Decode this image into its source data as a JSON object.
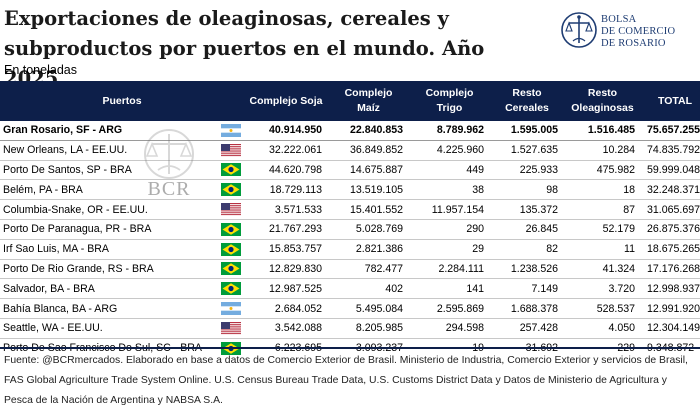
{
  "title": "Exportaciones de oleaginosas, cereales y subproductos por puertos en el mundo. Año 2025",
  "subtitle": "En toneladas",
  "logo": {
    "line1": "BOLSA",
    "line2": "DE COMERCIO",
    "line3": "DE ROSARIO"
  },
  "watermark": "BCR",
  "table": {
    "headers": {
      "port": "Puertos",
      "soja": "Complejo Soja",
      "maiz": "Complejo Maíz",
      "trigo": "Complejo Trigo",
      "resto_cereales": "Resto Cereales",
      "resto_oleaginosas": "Resto Oleaginosas",
      "total": "TOTAL"
    },
    "rows": [
      {
        "port": "Gran Rosario, SF - ARG",
        "flag": "arg",
        "soja": "40.914.950",
        "maiz": "22.840.853",
        "trigo": "8.789.962",
        "resto_cereales": "1.595.005",
        "resto_oleaginosas": "1.516.485",
        "total": "75.657.255"
      },
      {
        "port": "New Orleans,  LA - EE.UU.",
        "flag": "usa",
        "soja": "32.222.061",
        "maiz": "36.849.852",
        "trigo": "4.225.960",
        "resto_cereales": "1.527.635",
        "resto_oleaginosas": "10.284",
        "total": "74.835.792"
      },
      {
        "port": "Porto De Santos, SP - BRA",
        "flag": "bra",
        "soja": "44.620.798",
        "maiz": "14.675.887",
        "trigo": "449",
        "resto_cereales": "225.933",
        "resto_oleaginosas": "475.982",
        "total": "59.999.048"
      },
      {
        "port": "Belém, PA - BRA",
        "flag": "bra",
        "soja": "18.729.113",
        "maiz": "13.519.105",
        "trigo": "38",
        "resto_cereales": "98",
        "resto_oleaginosas": "18",
        "total": "32.248.371"
      },
      {
        "port": "Columbia-Snake,  OR - EE.UU.",
        "flag": "usa",
        "soja": "3.571.533",
        "maiz": "15.401.552",
        "trigo": "11.957.154",
        "resto_cereales": "135.372",
        "resto_oleaginosas": "87",
        "total": "31.065.697"
      },
      {
        "port": "Porto De Paranagua, PR - BRA",
        "flag": "bra",
        "soja": "21.767.293",
        "maiz": "5.028.769",
        "trigo": "290",
        "resto_cereales": "26.845",
        "resto_oleaginosas": "52.179",
        "total": "26.875.376"
      },
      {
        "port": "Irf Sao Luis, MA - BRA",
        "flag": "bra",
        "soja": "15.853.757",
        "maiz": "2.821.386",
        "trigo": "29",
        "resto_cereales": "82",
        "resto_oleaginosas": "11",
        "total": "18.675.265"
      },
      {
        "port": "Porto De Rio Grande, RS - BRA",
        "flag": "bra",
        "soja": "12.829.830",
        "maiz": "782.477",
        "trigo": "2.284.111",
        "resto_cereales": "1.238.526",
        "resto_oleaginosas": "41.324",
        "total": "17.176.268"
      },
      {
        "port": "Salvador, BA - BRA",
        "flag": "bra",
        "soja": "12.987.525",
        "maiz": "402",
        "trigo": "141",
        "resto_cereales": "7.149",
        "resto_oleaginosas": "3.720",
        "total": "12.998.937"
      },
      {
        "port": "Bahía Blanca, BA - ARG",
        "flag": "arg",
        "soja": "2.684.052",
        "maiz": "5.495.084",
        "trigo": "2.595.869",
        "resto_cereales": "1.688.378",
        "resto_oleaginosas": "528.537",
        "total": "12.991.920"
      },
      {
        "port": "Seattle,  WA - EE.UU.",
        "flag": "usa",
        "soja": "3.542.088",
        "maiz": "8.205.985",
        "trigo": "294.598",
        "resto_cereales": "257.428",
        "resto_oleaginosas": "4.050",
        "total": "12.304.149"
      },
      {
        "port": "Porto De Sao Francisco Do Sul, SC - BRA",
        "flag": "bra",
        "soja": "6.223.695",
        "maiz": "3.093.237",
        "trigo": "19",
        "resto_cereales": "31.692",
        "resto_oleaginosas": "229",
        "total": "9.348.872"
      }
    ]
  },
  "source": "Fuente: @BCRmercados. Elaborado en base a datos de Comercio Exterior de Brasil. Ministerio de Industria, Comercio Exterior y servicios de Brasil, FAS Global Agriculture Trade System Online. U.S. Census Bureau Trade Data, U.S. Customs District Data y Datos de Ministerio de Agricultura y Pesca de la Nación de Argentina y NABSA S.A.",
  "colors": {
    "header_bg": "#0d1f4a",
    "logo_blue": "#1f3d73"
  }
}
